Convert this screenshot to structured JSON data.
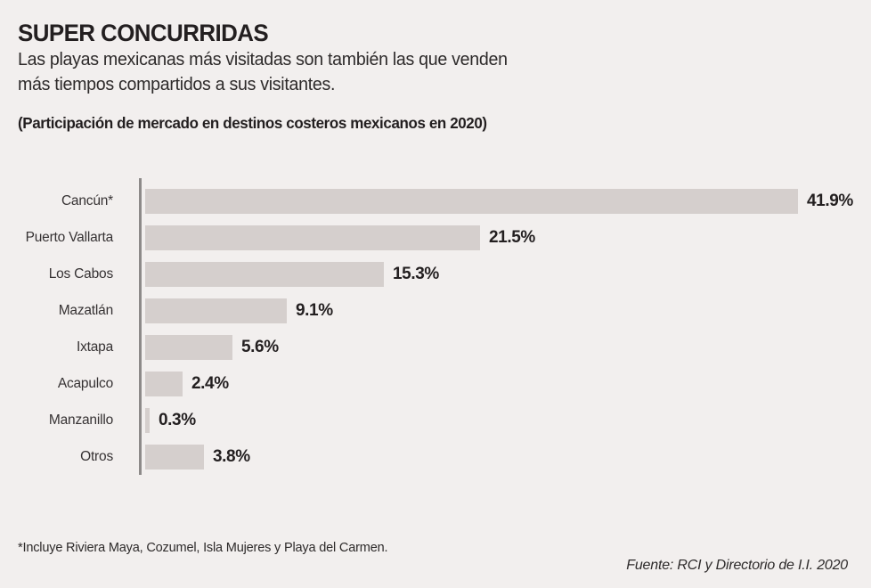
{
  "header": {
    "title": "SUPER CONCURRIDAS",
    "subtitle_line1": "Las playas mexicanas más visitadas son también las que venden",
    "subtitle_line2": "más tiempos compartidos a sus visitantes.",
    "kicker": "(Participación de mercado en destinos costeros mexicanos en 2020)"
  },
  "chart_data": {
    "type": "bar",
    "orientation": "horizontal",
    "title": "SUPER CONCURRIDAS",
    "subtitle": "(Participación de mercado en destinos costeros mexicanos en 2020)",
    "categories": [
      "Cancún*",
      "Puerto Vallarta",
      "Los Cabos",
      "Mazatlán",
      "Ixtapa",
      "Acapulco",
      "Manzanillo",
      "Otros"
    ],
    "values": [
      41.9,
      21.5,
      15.3,
      9.1,
      5.6,
      2.4,
      0.3,
      3.8
    ],
    "value_labels": [
      "41.9%",
      "21.5%",
      "15.3%",
      "9.1%",
      "5.6%",
      "2.4%",
      "0.3%",
      "3.8%"
    ],
    "unit": "%",
    "xlim": [
      0,
      41.9
    ],
    "grid": false,
    "legend": false,
    "colors": {
      "background": "#f2efee",
      "bar": "#d5cfcd",
      "axis": "#8d8a89",
      "text": "#231f20"
    }
  },
  "footer": {
    "footnote": "*Incluye Riviera Maya, Cozumel, Isla Mujeres y Playa del Carmen.",
    "source": "Fuente: RCI y Directorio de I.I. 2020"
  }
}
